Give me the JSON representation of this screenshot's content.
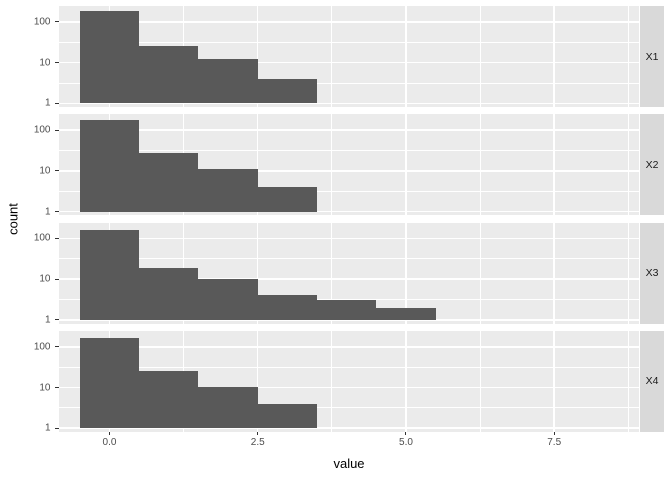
{
  "chart_data": {
    "type": "bar",
    "subtype": "faceted-histogram",
    "title": "",
    "xlabel": "value",
    "ylabel": "count",
    "y_scale": "log10",
    "grid": true,
    "legend": "none",
    "x_domain": [
      -0.86,
      8.93
    ],
    "y_log_domain": [
      -0.09,
      2.39
    ],
    "bin_width": 1,
    "x_ticks": [
      0,
      2.5,
      5,
      7.5
    ],
    "x_tick_labels": [
      "0.0",
      "2.5",
      "5.0",
      "7.5"
    ],
    "x_minor_gridlines": [
      1.25,
      3.75,
      6.25,
      8.75
    ],
    "y_ticks": [
      100,
      10,
      1
    ],
    "y_tick_labels": [
      "100",
      "10",
      "1"
    ],
    "y_minor_gridlines_log": [
      0.5,
      1.5
    ],
    "facets": [
      {
        "label": "X1",
        "bin_centers": [
          0,
          1,
          2,
          3
        ],
        "counts": [
          180,
          25,
          12,
          4
        ]
      },
      {
        "label": "X2",
        "bin_centers": [
          0,
          1,
          2,
          3
        ],
        "counts": [
          178,
          27,
          11,
          4
        ]
      },
      {
        "label": "X3",
        "bin_centers": [
          0,
          1,
          2,
          3,
          4,
          5
        ],
        "counts": [
          165,
          19,
          10,
          4,
          3,
          2
        ]
      },
      {
        "label": "X4",
        "bin_centers": [
          0,
          1,
          2,
          3
        ],
        "counts": [
          163,
          25,
          10,
          4
        ]
      }
    ]
  },
  "colors": {
    "page_bg": "#FFFFFF",
    "panel_bg": "#EBEBEB",
    "bar_fill": "#595959",
    "gridline": "#FFFFFF",
    "strip_bg": "#D9D9D9",
    "strip_text": "#1A1A1A",
    "tick_text": "#4D4D4D",
    "axis_title_text": "#000000"
  }
}
